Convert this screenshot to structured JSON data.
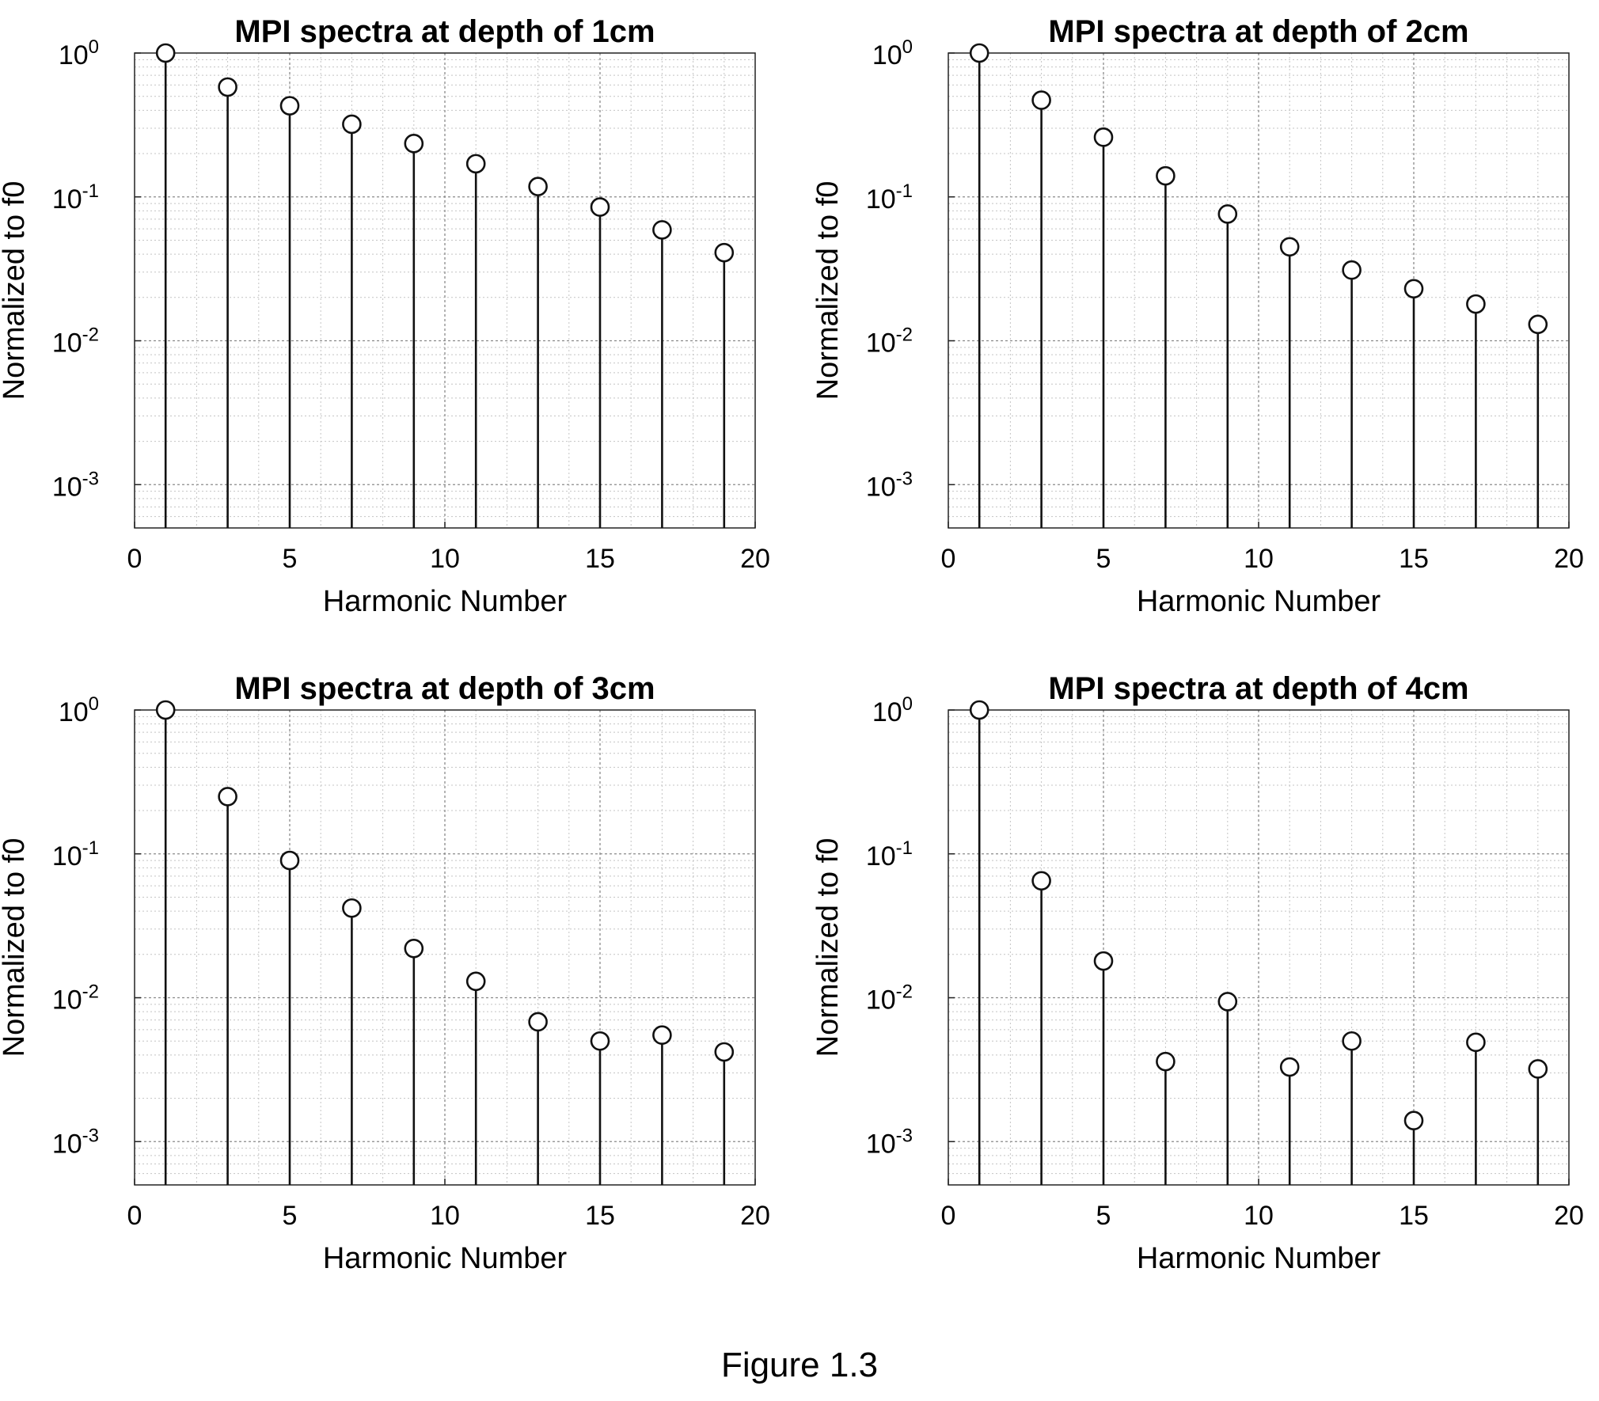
{
  "figure": {
    "caption": "Figure 1.3"
  },
  "chart_data": [
    {
      "type": "stem",
      "title": "MPI spectra at depth of 1cm",
      "xlabel": "Harmonic Number",
      "ylabel": "Normalized to f0",
      "xlim": [
        0,
        20
      ],
      "ylim": [
        0.0005,
        1
      ],
      "y_scale": "log",
      "grid": "major and minor, dotted",
      "x_ticks": [
        "0",
        "5",
        "10",
        "15",
        "20"
      ],
      "y_ticks": [
        "10^-3",
        "10^-2",
        "10^-1",
        "10^0"
      ],
      "x": [
        1,
        3,
        5,
        7,
        9,
        11,
        13,
        15,
        17,
        19
      ],
      "values": [
        1.0,
        0.58,
        0.43,
        0.32,
        0.235,
        0.17,
        0.118,
        0.085,
        0.059,
        0.041
      ]
    },
    {
      "type": "stem",
      "title": "MPI spectra at depth of 2cm",
      "xlabel": "Harmonic Number",
      "ylabel": "Normalized to f0",
      "xlim": [
        0,
        20
      ],
      "ylim": [
        0.0005,
        1
      ],
      "y_scale": "log",
      "grid": "major and minor, dotted",
      "x_ticks": [
        "0",
        "5",
        "10",
        "15",
        "20"
      ],
      "y_ticks": [
        "10^-3",
        "10^-2",
        "10^-1",
        "10^0"
      ],
      "x": [
        1,
        3,
        5,
        7,
        9,
        11,
        13,
        15,
        17,
        19
      ],
      "values": [
        1.0,
        0.47,
        0.26,
        0.14,
        0.076,
        0.045,
        0.031,
        0.023,
        0.018,
        0.013
      ]
    },
    {
      "type": "stem",
      "title": "MPI spectra at depth of 3cm",
      "xlabel": "Harmonic Number",
      "ylabel": "Normalized to f0",
      "xlim": [
        0,
        20
      ],
      "ylim": [
        0.0005,
        1
      ],
      "y_scale": "log",
      "grid": "major and minor, dotted",
      "x_ticks": [
        "0",
        "5",
        "10",
        "15",
        "20"
      ],
      "y_ticks": [
        "10^-3",
        "10^-2",
        "10^-1",
        "10^0"
      ],
      "x": [
        1,
        3,
        5,
        7,
        9,
        11,
        13,
        15,
        17,
        19
      ],
      "values": [
        1.0,
        0.25,
        0.09,
        0.042,
        0.022,
        0.013,
        0.0068,
        0.005,
        0.0055,
        0.0042
      ]
    },
    {
      "type": "stem",
      "title": "MPI spectra at depth of 4cm",
      "xlabel": "Harmonic Number",
      "ylabel": "Normalized to f0",
      "xlim": [
        0,
        20
      ],
      "ylim": [
        0.0005,
        1
      ],
      "y_scale": "log",
      "grid": "major and minor, dotted",
      "x_ticks": [
        "0",
        "5",
        "10",
        "15",
        "20"
      ],
      "y_ticks": [
        "10^-3",
        "10^-2",
        "10^-1",
        "10^0"
      ],
      "x": [
        1,
        3,
        5,
        7,
        9,
        11,
        13,
        15,
        17,
        19
      ],
      "values": [
        1.0,
        0.065,
        0.018,
        0.0036,
        0.0094,
        0.0033,
        0.005,
        0.0014,
        0.0049,
        0.0032
      ]
    }
  ]
}
